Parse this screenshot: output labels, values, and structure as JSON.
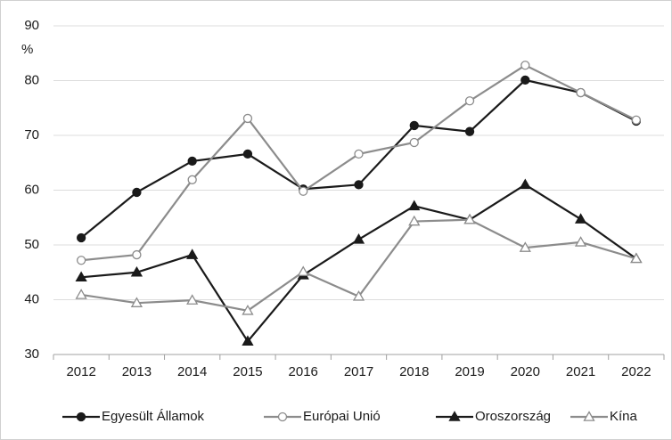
{
  "chart_data": {
    "type": "line",
    "ylabel": "%",
    "categories": [
      "2012",
      "2013",
      "2014",
      "2015",
      "2016",
      "2017",
      "2018",
      "2019",
      "2020",
      "2021",
      "2022"
    ],
    "ylim": [
      30,
      90
    ],
    "yticks": [
      30,
      40,
      50,
      60,
      70,
      80,
      90
    ],
    "grid": true,
    "legend": "bottom",
    "series": [
      {
        "name": "Egyesült Államok",
        "color": "#1a1a1a",
        "marker": "circle",
        "filled": true,
        "values": [
          51.3,
          59.6,
          65.3,
          66.6,
          60.2,
          61.0,
          71.8,
          70.7,
          80.1,
          77.8,
          72.6
        ]
      },
      {
        "name": "Európai Unió",
        "color": "#8c8c8c",
        "marker": "circle",
        "filled": false,
        "values": [
          47.2,
          48.2,
          61.9,
          73.1,
          59.8,
          66.6,
          68.7,
          76.3,
          82.8,
          77.8,
          72.8
        ]
      },
      {
        "name": "Oroszország",
        "color": "#1a1a1a",
        "marker": "triangle",
        "filled": true,
        "values": [
          44.1,
          45.0,
          48.2,
          32.4,
          44.5,
          51.0,
          57.1,
          54.6,
          61.0,
          54.7,
          47.5
        ]
      },
      {
        "name": "Kína",
        "color": "#8c8c8c",
        "marker": "triangle",
        "filled": false,
        "values": [
          40.9,
          39.4,
          39.9,
          38.0,
          45.1,
          40.6,
          54.3,
          54.6,
          49.5,
          50.5,
          47.5
        ]
      }
    ]
  }
}
